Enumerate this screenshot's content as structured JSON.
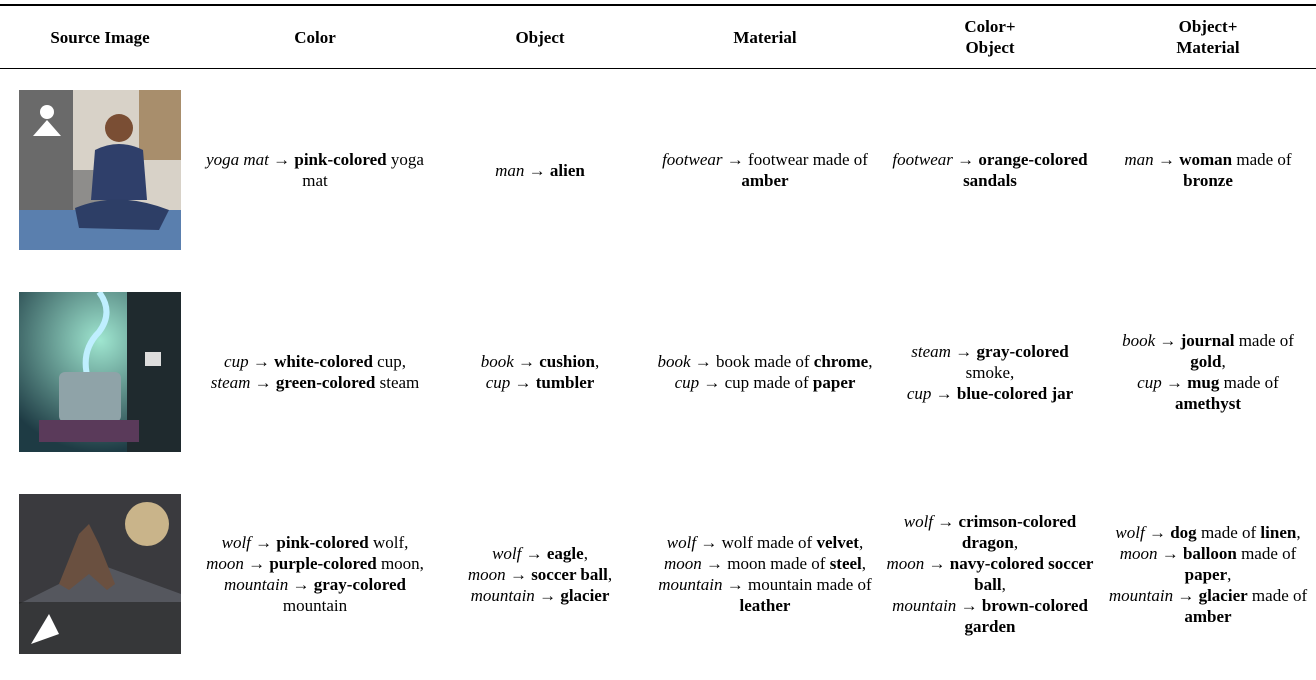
{
  "table": {
    "headers": [
      [
        "Source Image"
      ],
      [
        "Color"
      ],
      [
        "Object"
      ],
      [
        "Material"
      ],
      [
        "Color+",
        "Object"
      ],
      [
        "Object+",
        "Material"
      ]
    ],
    "rows": [
      [
        [
          [
            {
              "text": "yoga mat",
              "style": "italic"
            },
            {
              "text": " → "
            },
            {
              "text": "pink-colored",
              "style": "bold"
            },
            {
              "text": " yoga mat"
            }
          ]
        ],
        [
          [
            {
              "text": "man",
              "style": "italic"
            },
            {
              "text": " → "
            },
            {
              "text": "alien",
              "style": "bold"
            }
          ]
        ],
        [
          [
            {
              "text": "footwear",
              "style": "italic"
            },
            {
              "text": " → footwear made of "
            },
            {
              "text": "amber",
              "style": "bold"
            }
          ]
        ],
        [
          [
            {
              "text": "footwear",
              "style": "italic"
            },
            {
              "text": " → "
            },
            {
              "text": "orange-colored sandals",
              "style": "bold"
            }
          ]
        ],
        [
          [
            {
              "text": "man",
              "style": "italic"
            },
            {
              "text": " → "
            },
            {
              "text": "woman",
              "style": "bold"
            },
            {
              "text": " made of "
            },
            {
              "text": "bronze",
              "style": "bold"
            }
          ]
        ]
      ],
      [
        [
          [
            {
              "text": "cup",
              "style": "italic"
            },
            {
              "text": " → "
            },
            {
              "text": "white-colored",
              "style": "bold"
            },
            {
              "text": " cup,"
            }
          ],
          [
            {
              "text": "steam",
              "style": "italic"
            },
            {
              "text": " → "
            },
            {
              "text": "green-colored",
              "style": "bold"
            },
            {
              "text": " steam"
            }
          ]
        ],
        [
          [
            {
              "text": "book",
              "style": "italic"
            },
            {
              "text": " → "
            },
            {
              "text": "cushion",
              "style": "bold"
            },
            {
              "text": ","
            }
          ],
          [
            {
              "text": "cup",
              "style": "italic"
            },
            {
              "text": " → "
            },
            {
              "text": "tumbler",
              "style": "bold"
            }
          ]
        ],
        [
          [
            {
              "text": "book",
              "style": "italic"
            },
            {
              "text": " → book made of "
            },
            {
              "text": "chrome",
              "style": "bold"
            },
            {
              "text": ","
            }
          ],
          [
            {
              "text": "cup",
              "style": "italic"
            },
            {
              "text": " → cup made of "
            },
            {
              "text": "paper",
              "style": "bold"
            }
          ]
        ],
        [
          [
            {
              "text": "steam",
              "style": "italic"
            },
            {
              "text": " → "
            },
            {
              "text": "gray-colored",
              "style": "bold"
            },
            {
              "text": " smoke,"
            }
          ],
          [
            {
              "text": "cup",
              "style": "italic"
            },
            {
              "text": " → "
            },
            {
              "text": "blue-colored jar",
              "style": "bold"
            }
          ]
        ],
        [
          [
            {
              "text": "book",
              "style": "italic"
            },
            {
              "text": " → "
            },
            {
              "text": "journal",
              "style": "bold"
            },
            {
              "text": " made of "
            },
            {
              "text": "gold",
              "style": "bold"
            },
            {
              "text": ","
            }
          ],
          [
            {
              "text": "cup",
              "style": "italic"
            },
            {
              "text": " → "
            },
            {
              "text": "mug",
              "style": "bold"
            },
            {
              "text": " made of "
            },
            {
              "text": "amethyst",
              "style": "bold"
            }
          ]
        ]
      ],
      [
        [
          [
            {
              "text": "wolf",
              "style": "italic"
            },
            {
              "text": " → "
            },
            {
              "text": "pink-colored",
              "style": "bold"
            },
            {
              "text": " wolf,"
            }
          ],
          [
            {
              "text": "moon",
              "style": "italic"
            },
            {
              "text": " → "
            },
            {
              "text": "purple-colored",
              "style": "bold"
            },
            {
              "text": " moon,"
            }
          ],
          [
            {
              "text": "mountain",
              "style": "italic"
            },
            {
              "text": " → "
            },
            {
              "text": "gray-colored",
              "style": "bold"
            },
            {
              "text": " mountain"
            }
          ]
        ],
        [
          [
            {
              "text": "wolf",
              "style": "italic"
            },
            {
              "text": " → "
            },
            {
              "text": "eagle",
              "style": "bold"
            },
            {
              "text": ","
            }
          ],
          [
            {
              "text": "moon",
              "style": "italic"
            },
            {
              "text": " → "
            },
            {
              "text": "soccer ball",
              "style": "bold"
            },
            {
              "text": ","
            }
          ],
          [
            {
              "text": "mountain",
              "style": "italic"
            },
            {
              "text": " → "
            },
            {
              "text": "glacier",
              "style": "bold"
            }
          ]
        ],
        [
          [
            {
              "text": "wolf",
              "style": "italic"
            },
            {
              "text": " → wolf made of "
            },
            {
              "text": "velvet",
              "style": "bold"
            },
            {
              "text": ","
            }
          ],
          [
            {
              "text": "moon",
              "style": "italic"
            },
            {
              "text": " → moon made of "
            },
            {
              "text": "steel",
              "style": "bold"
            },
            {
              "text": ","
            }
          ],
          [
            {
              "text": "mountain",
              "style": "italic"
            },
            {
              "text": " → mountain made of "
            },
            {
              "text": "leather",
              "style": "bold"
            }
          ]
        ],
        [
          [
            {
              "text": "wolf",
              "style": "italic"
            },
            {
              "text": " → "
            },
            {
              "text": "crimson-colored dragon",
              "style": "bold"
            },
            {
              "text": ","
            }
          ],
          [
            {
              "text": "moon",
              "style": "italic"
            },
            {
              "text": " → "
            },
            {
              "text": "navy-colored soccer ball",
              "style": "bold"
            },
            {
              "text": ","
            }
          ],
          [
            {
              "text": "mountain",
              "style": "italic"
            },
            {
              "text": " → "
            },
            {
              "text": "brown-colored garden",
              "style": "bold"
            }
          ]
        ],
        [
          [
            {
              "text": "wolf",
              "style": "italic"
            },
            {
              "text": " → "
            },
            {
              "text": "dog",
              "style": "bold"
            },
            {
              "text": " made of "
            },
            {
              "text": "linen",
              "style": "bold"
            },
            {
              "text": ","
            }
          ],
          [
            {
              "text": "moon",
              "style": "italic"
            },
            {
              "text": " → "
            },
            {
              "text": "balloon",
              "style": "bold"
            },
            {
              "text": " made of "
            },
            {
              "text": "paper",
              "style": "bold"
            },
            {
              "text": ","
            }
          ],
          [
            {
              "text": "mountain",
              "style": "italic"
            },
            {
              "text": " → "
            },
            {
              "text": "glacier",
              "style": "bold"
            },
            {
              "text": " made of "
            },
            {
              "text": "amber",
              "style": "bold"
            }
          ]
        ]
      ]
    ]
  }
}
